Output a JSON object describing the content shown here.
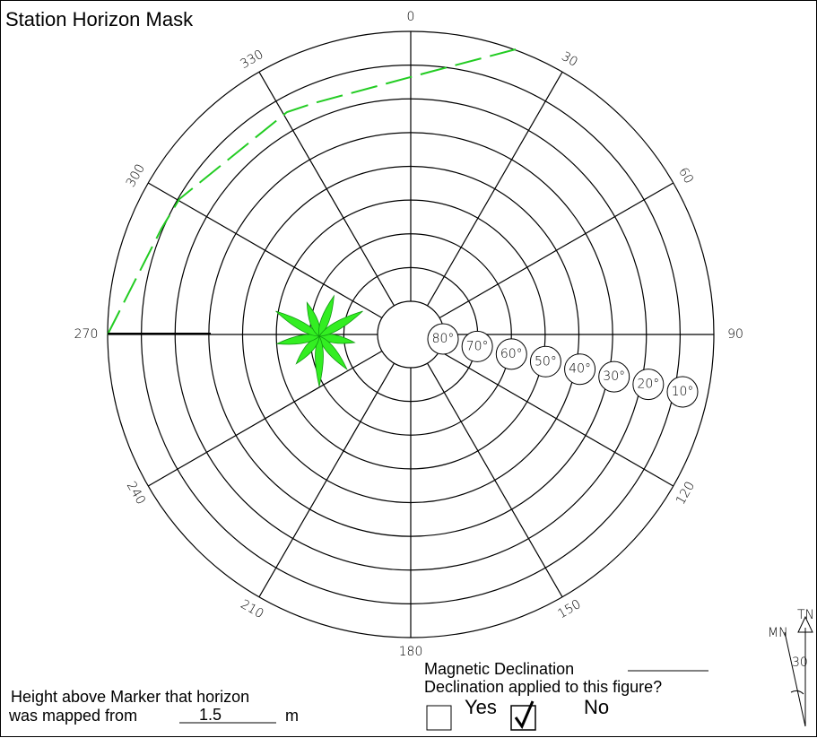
{
  "title": "Station Horizon Mask",
  "azimuth_labels": [
    0,
    30,
    60,
    90,
    120,
    150,
    180,
    210,
    240,
    270,
    300,
    330
  ],
  "elevation_labels": [
    "80°",
    "70°",
    "60°",
    "50°",
    "40°",
    "30°",
    "20°",
    "10°"
  ],
  "form": {
    "magnetic_declination": "Magnetic Declination",
    "declination_question": "Declination applied to this figure?",
    "yes": "Yes",
    "no": "No",
    "height_line1": "Height above Marker that horizon",
    "height_line2": "was mapped from",
    "height_value": "1.5",
    "height_unit": "m"
  },
  "north_arrow": {
    "true_north": "TN",
    "magnetic_north": "MN",
    "angle": 30
  }
}
